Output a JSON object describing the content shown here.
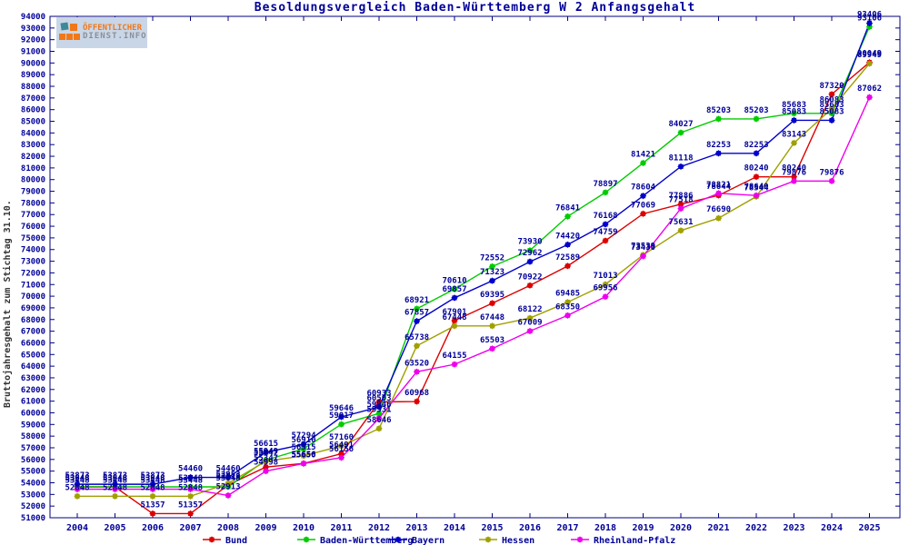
{
  "title": "Besoldungsvergleich Baden-Württemberg W 2 Anfangsgehalt",
  "y_axis_label": "Bruttojahresgehalt zum Stichtag 31.10.",
  "logo": {
    "line1": "ÖFFENTLICHER",
    "line2": "DIENST.INFO"
  },
  "colors": {
    "text": "#000099",
    "frame": "#000080",
    "bund": "#dd0000",
    "baden_wuerttemberg": "#00cc00",
    "bayern": "#0000cc",
    "hessen": "#a0a000",
    "rheinland_pfalz": "#ee00ee"
  },
  "chart_data": {
    "type": "line",
    "title": "Besoldungsvergleich Baden-Württemberg W 2 Anfangsgehalt",
    "xlabel": "",
    "ylabel": "Bruttojahresgehalt zum Stichtag 31.10.",
    "ylim": [
      51000,
      94000
    ],
    "ytick_step": 1000,
    "grid": false,
    "legend_position": "bottom",
    "x": [
      2004,
      2005,
      2006,
      2007,
      2008,
      2009,
      2010,
      2011,
      2012,
      2013,
      2014,
      2015,
      2016,
      2017,
      2018,
      2019,
      2020,
      2021,
      2022,
      2023,
      2024,
      2025
    ],
    "series": [
      {
        "name": "Bund",
        "color": "#dd0000",
        "values": [
          53648,
          53648,
          51357,
          51357,
          53818,
          55347,
          55656,
          56491,
          60933,
          60968,
          67901,
          69395,
          70922,
          72589,
          74759,
          77069,
          77886,
          78644,
          80240,
          80240,
          87320,
          90049
        ]
      },
      {
        "name": "Baden-Württemberg",
        "color": "#00cc00",
        "values": [
          53648,
          53648,
          53648,
          53648,
          53648,
          55949,
          56910,
          59017,
          59946,
          68921,
          70610,
          72552,
          73930,
          76841,
          78897,
          81421,
          84027,
          85203,
          85203,
          85683,
          85683,
          93106
        ]
      },
      {
        "name": "Bayern",
        "color": "#0000cc",
        "values": [
          53873,
          53873,
          53873,
          54460,
          54460,
          56615,
          57294,
          59646,
          60503,
          67857,
          69857,
          71323,
          72962,
          74420,
          76168,
          78604,
          81118,
          82253,
          82253,
          85083,
          85083,
          93406
        ]
      },
      {
        "name": "Hessen",
        "color": "#a0a000",
        "values": [
          52848,
          52848,
          52848,
          52848,
          53953,
          55847,
          56315,
          57160,
          58646,
          65738,
          67448,
          67448,
          68122,
          69485,
          71013,
          73539,
          75631,
          76690,
          78544,
          83143,
          86083,
          89949
        ]
      },
      {
        "name": "Rheinland-Pfalz",
        "color": "#ee00ee",
        "values": [
          53448,
          53448,
          53448,
          53448,
          52913,
          54998,
          55650,
          56156,
          59531,
          63520,
          64155,
          65503,
          67009,
          68350,
          69956,
          73430,
          77518,
          78821,
          78640,
          79876,
          79876,
          87062
        ]
      }
    ]
  }
}
